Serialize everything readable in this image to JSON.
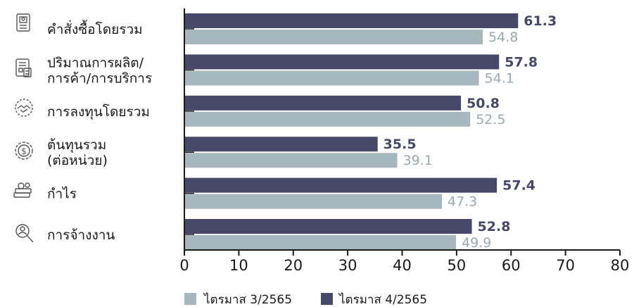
{
  "chart_data": {
    "type": "bar",
    "orientation": "horizontal",
    "categories": [
      {
        "lines": [
          "คำสั่งซื้อโดยรวม"
        ],
        "icon": "document-icon"
      },
      {
        "lines": [
          "ปริมาณการผลิต/",
          "การค้า/การบริการ"
        ],
        "icon": "report-icon"
      },
      {
        "lines": [
          "การลงทุนโดยรวม"
        ],
        "icon": "handshake-icon"
      },
      {
        "lines": [
          "ต้นทุนรวม",
          "(ต่อหน่วย)"
        ],
        "icon": "dollar-gear-icon"
      },
      {
        "lines": [
          "กำไร"
        ],
        "icon": "money-stack-icon"
      },
      {
        "lines": [
          "การจ้างงาน"
        ],
        "icon": "people-search-icon"
      }
    ],
    "series": [
      {
        "name": "ไตรมาส 4/2565",
        "color": "#474769",
        "values": [
          61.3,
          57.8,
          50.8,
          35.5,
          57.4,
          52.8
        ]
      },
      {
        "name": "ไตรมาส 3/2565",
        "color": "#a6b8be",
        "values": [
          54.8,
          54.1,
          52.5,
          39.1,
          47.3,
          49.9
        ]
      }
    ],
    "value_labels": {
      "q4": [
        "61.3",
        "57.8",
        "50.8",
        "35.5",
        "57.4",
        "52.8"
      ],
      "q3": [
        "54.8",
        "54.1",
        "52.5",
        "39.1",
        "47.3",
        "49.9"
      ]
    },
    "xlim": [
      0,
      80
    ],
    "x_ticks": [
      "0",
      "10",
      "20",
      "30",
      "40",
      "50",
      "60",
      "70",
      "80"
    ],
    "legend": {
      "placement": "bottom",
      "items": [
        {
          "label": "ไตรมาส 3/2565",
          "color": "#a6b8be"
        },
        {
          "label": "ไตรมาส 4/2565",
          "color": "#474769"
        }
      ]
    },
    "grid": false
  }
}
